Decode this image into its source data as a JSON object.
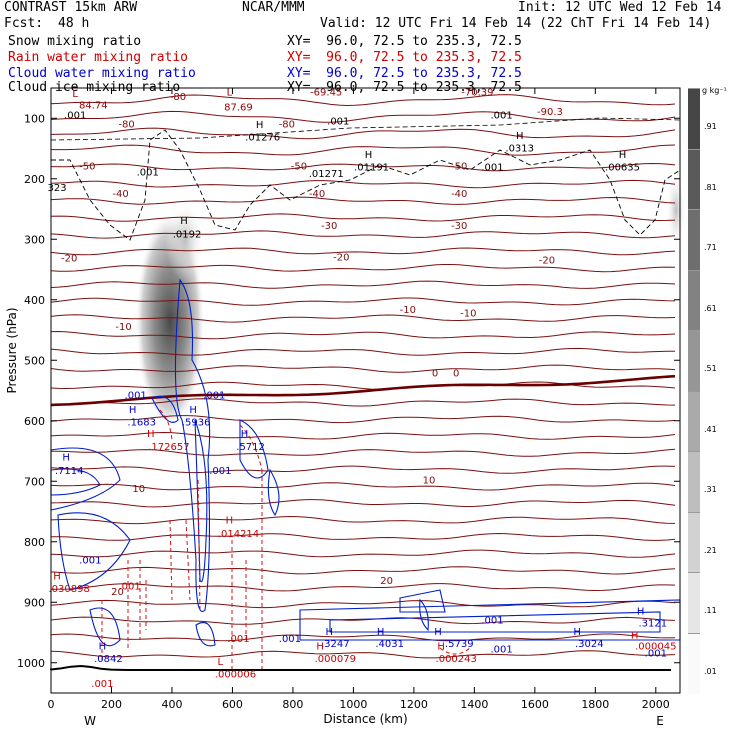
{
  "header": {
    "model": "CONTRAST 15km ARW",
    "forecast_label": "Fcst:",
    "forecast_value": "48 h",
    "agency": "NCAR/MMM",
    "init": "Init: 12 UTC Wed 12 Feb 14",
    "valid": "Valid: 12 UTC Fri 14 Feb 14 (22 ChT Fri 14 Feb 14)"
  },
  "fields": [
    {
      "name": "Snow mixing ratio",
      "xy": "XY=  96.0, 72.5 to 235.3, 72.5",
      "color": "#000000"
    },
    {
      "name": "Rain water mixing ratio",
      "xy": "XY=  96.0, 72.5 to 235.3, 72.5",
      "color": "#cc0000"
    },
    {
      "name": "Cloud water mixing ratio",
      "xy": "XY=  96.0, 72.5 to 235.3, 72.5",
      "color": "#0000cc"
    },
    {
      "name": "Cloud ice mixing ratio",
      "xy": "XY=  96.0, 72.5 to 235.3, 72.5",
      "color": "#000000"
    }
  ],
  "chart_data": {
    "type": "contour",
    "xlabel": "Distance (km)",
    "ylabel": "Pressure (hPa)",
    "xlim": [
      0,
      2080
    ],
    "ylim": [
      1050,
      50
    ],
    "x_ticks": [
      0,
      200,
      400,
      600,
      800,
      1000,
      1200,
      1400,
      1600,
      1800,
      2000
    ],
    "y_ticks": [
      100,
      200,
      300,
      400,
      500,
      600,
      700,
      800,
      900,
      1000
    ],
    "x_ends": [
      "W",
      "E"
    ],
    "colorbar": {
      "units": "g kg⁻¹",
      "labels": [
        ".91",
        ".81",
        ".71",
        ".61",
        ".51",
        ".41",
        ".31",
        ".21",
        ".11",
        ".01"
      ]
    },
    "isotherm_labels": [
      {
        "text": "-80",
        "x": 250,
        "p": 115
      },
      {
        "text": "-80",
        "x": 780,
        "p": 115
      },
      {
        "text": "-50",
        "x": 120,
        "p": 185
      },
      {
        "text": "-50",
        "x": 820,
        "p": 185
      },
      {
        "text": "-50",
        "x": 1350,
        "p": 185
      },
      {
        "text": "-40",
        "x": 230,
        "p": 230
      },
      {
        "text": "-40",
        "x": 880,
        "p": 230
      },
      {
        "text": "-40",
        "x": 1350,
        "p": 230
      },
      {
        "text": "-30",
        "x": 920,
        "p": 283
      },
      {
        "text": "-30",
        "x": 1350,
        "p": 283
      },
      {
        "text": "-20",
        "x": 60,
        "p": 337
      },
      {
        "text": "-20",
        "x": 960,
        "p": 335
      },
      {
        "text": "-20",
        "x": 1640,
        "p": 340
      },
      {
        "text": "-10",
        "x": 240,
        "p": 450
      },
      {
        "text": "-10",
        "x": 1180,
        "p": 422
      },
      {
        "text": "-10",
        "x": 1380,
        "p": 428
      },
      {
        "text": "0",
        "x": 1270,
        "p": 527
      },
      {
        "text": "0",
        "x": 1340,
        "p": 527
      },
      {
        "text": "10",
        "x": 290,
        "p": 718
      },
      {
        "text": "10",
        "x": 1250,
        "p": 704
      },
      {
        "text": "20",
        "x": 220,
        "p": 888
      },
      {
        "text": "20",
        "x": 1110,
        "p": 870
      }
    ],
    "point_labels": [
      {
        "text": "L",
        "x": 80,
        "p": 65,
        "color": "#990000"
      },
      {
        "text": "84.74",
        "x": 140,
        "p": 84,
        "color": "#990000"
      },
      {
        "text": ".001",
        "x": 80,
        "p": 100,
        "color": "#000000"
      },
      {
        "text": "-80",
        "x": 420,
        "p": 70,
        "color": "#990000"
      },
      {
        "text": "L",
        "x": 590,
        "p": 62,
        "color": "#990000"
      },
      {
        "text": "87.69",
        "x": 620,
        "p": 87,
        "color": "#990000"
      },
      {
        "text": "-69.45",
        "x": 910,
        "p": 62,
        "color": "#990000"
      },
      {
        "text": "-70.39",
        "x": 1410,
        "p": 62,
        "color": "#990000"
      },
      {
        "text": "-90.3",
        "x": 1650,
        "p": 95,
        "color": "#990000"
      },
      {
        "text": "H",
        "x": 690,
        "p": 116,
        "color": "#000000"
      },
      {
        "text": ".01276",
        "x": 700,
        "p": 137,
        "color": "#000000"
      },
      {
        "text": ".001",
        "x": 950,
        "p": 110,
        "color": "#000000"
      },
      {
        "text": ".001",
        "x": 1490,
        "p": 100,
        "color": "#000000"
      },
      {
        "text": "H",
        "x": 1550,
        "p": 134,
        "color": "#000000"
      },
      {
        "text": ".0313",
        "x": 1550,
        "p": 155,
        "color": "#000000"
      },
      {
        "text": "H",
        "x": 1050,
        "p": 166,
        "color": "#000000"
      },
      {
        "text": ".01191",
        "x": 1060,
        "p": 186,
        "color": "#000000"
      },
      {
        "text": ".01271",
        "x": 910,
        "p": 197,
        "color": "#000000"
      },
      {
        "text": "H",
        "x": 1890,
        "p": 166,
        "color": "#000000"
      },
      {
        "text": ".00635",
        "x": 1890,
        "p": 186,
        "color": "#000000"
      },
      {
        "text": ".001",
        "x": 320,
        "p": 195,
        "color": "#000000"
      },
      {
        "text": ".001",
        "x": 1460,
        "p": 186,
        "color": "#000000"
      },
      {
        "text": "323",
        "x": 20,
        "p": 220,
        "color": "#000000"
      },
      {
        "text": "H",
        "x": 440,
        "p": 275,
        "color": "#000000"
      },
      {
        "text": ".0192",
        "x": 450,
        "p": 297,
        "color": "#000000"
      },
      {
        "text": ".001",
        "x": 280,
        "p": 563,
        "color": "#0000cc"
      },
      {
        "text": ".001",
        "x": 540,
        "p": 563,
        "color": "#0000cc"
      },
      {
        "text": "H",
        "x": 270,
        "p": 587,
        "color": "#0000cc"
      },
      {
        "text": ".1683",
        "x": 300,
        "p": 608,
        "color": "#0000cc"
      },
      {
        "text": "H",
        "x": 470,
        "p": 587,
        "color": "#0000cc"
      },
      {
        "text": ".5936",
        "x": 480,
        "p": 608,
        "color": "#0000cc"
      },
      {
        "text": "H",
        "x": 330,
        "p": 627,
        "color": "#cc0000"
      },
      {
        "text": ".172657",
        "x": 390,
        "p": 648,
        "color": "#cc0000"
      },
      {
        "text": "H",
        "x": 640,
        "p": 627,
        "color": "#0000cc"
      },
      {
        "text": ".5712",
        "x": 660,
        "p": 648,
        "color": "#0000cc"
      },
      {
        "text": "H",
        "x": 50,
        "p": 666,
        "color": "#0000cc"
      },
      {
        "text": ".7114",
        "x": 60,
        "p": 688,
        "color": "#0000cc"
      },
      {
        "text": ".001",
        "x": 560,
        "p": 688,
        "color": "#0000cc"
      },
      {
        "text": "H",
        "x": 590,
        "p": 770,
        "color": "#cc0000"
      },
      {
        "text": ".014214",
        "x": 620,
        "p": 792,
        "color": "#cc0000"
      },
      {
        "text": ".001",
        "x": 130,
        "p": 836,
        "color": "#0000cc"
      },
      {
        "text": "H",
        "x": 20,
        "p": 862,
        "color": "#cc0000"
      },
      {
        "text": ".030898",
        "x": 60,
        "p": 883,
        "color": "#cc0000"
      },
      {
        "text": ".001",
        "x": 260,
        "p": 879,
        "color": "#cc0000"
      },
      {
        "text": "H",
        "x": 170,
        "p": 978,
        "color": "#0000cc"
      },
      {
        "text": ".0842",
        "x": 190,
        "p": 999,
        "color": "#0000cc"
      },
      {
        "text": ".001",
        "x": 620,
        "p": 966,
        "color": "#cc0000"
      },
      {
        "text": ".001",
        "x": 790,
        "p": 966,
        "color": "#0000cc"
      },
      {
        "text": "H",
        "x": 920,
        "p": 954,
        "color": "#0000cc"
      },
      {
        "text": ".3247",
        "x": 940,
        "p": 974,
        "color": "#0000cc"
      },
      {
        "text": "H",
        "x": 1090,
        "p": 954,
        "color": "#0000cc"
      },
      {
        "text": ".4031",
        "x": 1120,
        "p": 974,
        "color": "#0000cc"
      },
      {
        "text": "H",
        "x": 890,
        "p": 978,
        "color": "#cc0000"
      },
      {
        "text": ".000079",
        "x": 940,
        "p": 999,
        "color": "#cc0000"
      },
      {
        "text": "H",
        "x": 1280,
        "p": 954,
        "color": "#0000cc"
      },
      {
        "text": ".5739",
        "x": 1350,
        "p": 974,
        "color": "#0000cc"
      },
      {
        "text": "H",
        "x": 1290,
        "p": 978,
        "color": "#cc0000"
      },
      {
        "text": ".000243",
        "x": 1340,
        "p": 999,
        "color": "#cc0000"
      },
      {
        "text": ".001",
        "x": 1460,
        "p": 935,
        "color": "#0000cc"
      },
      {
        "text": ".001",
        "x": 1490,
        "p": 983,
        "color": "#0000cc"
      },
      {
        "text": "H",
        "x": 1740,
        "p": 954,
        "color": "#0000cc"
      },
      {
        "text": ".3024",
        "x": 1780,
        "p": 974,
        "color": "#0000cc"
      },
      {
        "text": "H",
        "x": 1950,
        "p": 920,
        "color": "#0000cc"
      },
      {
        "text": ".3121",
        "x": 1990,
        "p": 940,
        "color": "#0000cc"
      },
      {
        "text": "H",
        "x": 1930,
        "p": 960,
        "color": "#cc0000"
      },
      {
        "text": ".000045",
        "x": 2000,
        "p": 978,
        "color": "#cc0000"
      },
      {
        "text": ".001",
        "x": 2000,
        "p": 990,
        "color": "#0000cc"
      },
      {
        "text": "L",
        "x": 560,
        "p": 1004,
        "color": "#cc0000"
      },
      {
        "text": ".000006",
        "x": 610,
        "p": 1024,
        "color": "#cc0000"
      },
      {
        "text": ".001",
        "x": 170,
        "p": 1040,
        "color": "#cc0000"
      }
    ]
  }
}
